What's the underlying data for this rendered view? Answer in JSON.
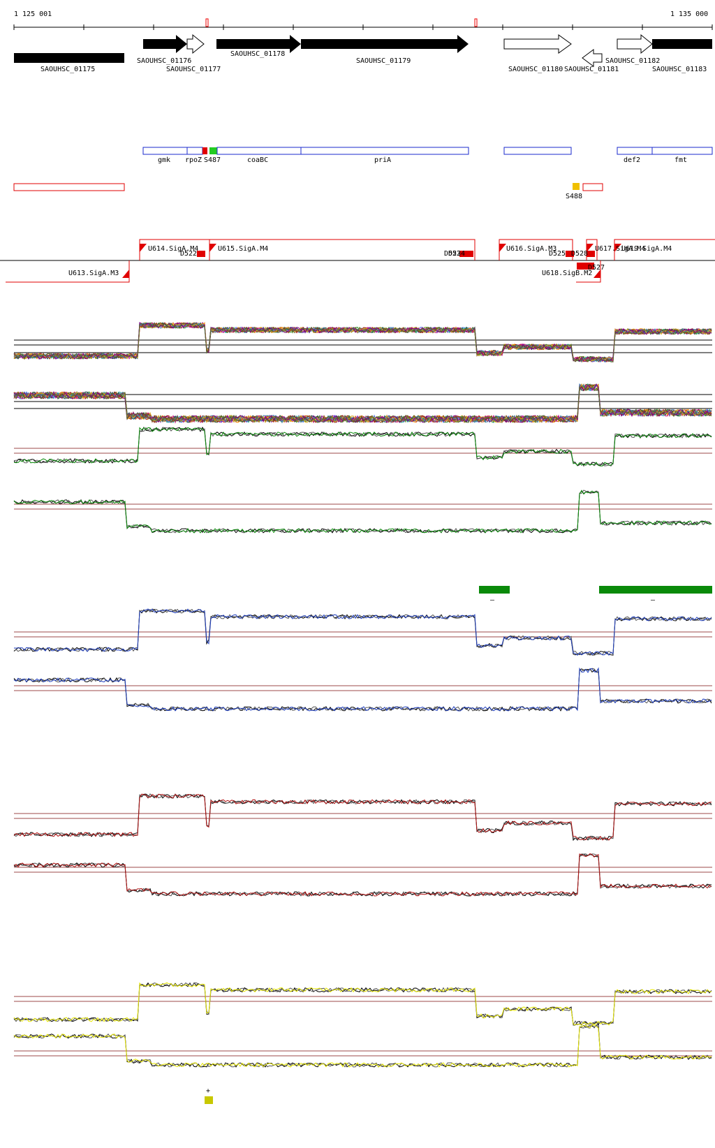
{
  "ruler": {
    "start_label": "1 125 001",
    "end_label": "1 135 000",
    "start": 1125001,
    "end": 1135000
  },
  "cds_labels": [
    "SAOUHSC_01175",
    "SAOUHSC_01176",
    "SAOUHSC_01177",
    "SAOUHSC_01178",
    "SAOUHSC_01179",
    "SAOUHSC_01180",
    "SAOUHSC_01181",
    "SAOUHSC_01182",
    "SAOUHSC_01183"
  ],
  "gene_labels": [
    "gmk",
    "rpoZ",
    "S487",
    "coaBC",
    "priA",
    "def2",
    "fmt"
  ],
  "feature_label": "S488",
  "tu_labels": [
    "U614.SigA.M4",
    "D522",
    "U615.SigA.M4",
    "D523",
    "D524",
    "U616.SigA.M3",
    "D525",
    "D528",
    "U617.SigA.M4",
    "U619.SigA.M4",
    "D527",
    "U613.SigA.M3",
    "U618.SigB.M2"
  ],
  "strand_labels": {
    "minus": "–",
    "plus": "+"
  },
  "colors": {
    "blue_track": "#1f3fbf",
    "green_track": "#0a8a0a",
    "red_track": "#b01010",
    "yellow_track": "#e8e800",
    "threshold": "#9c4a4a"
  }
}
